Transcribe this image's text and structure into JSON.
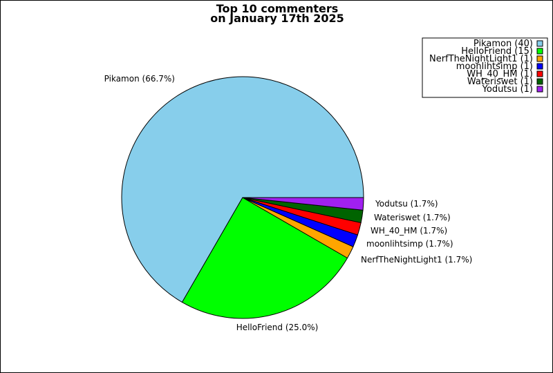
{
  "chart_data": {
    "type": "pie",
    "title_lines": [
      "Top 10 commenters",
      "on January 17th 2025"
    ],
    "start_angle_deg": 0,
    "direction": "counterclockwise",
    "legend_position": "top-right",
    "slices": [
      {
        "name": "Pikamon",
        "value": 40,
        "color": "#87CEEB",
        "label": "Pikamon (66.7%)",
        "legend": "Pikamon (40)"
      },
      {
        "name": "HelloFriend",
        "value": 15,
        "color": "#00FF00",
        "label": "HelloFriend (25.0%)",
        "legend": "HelloFriend (15)"
      },
      {
        "name": "NerfTheNightLight1",
        "value": 1,
        "color": "#FFA500",
        "label": "NerfTheNightLight1 (1.7%)",
        "legend": "NerfTheNightLight1 (1)"
      },
      {
        "name": "moonlihtsimp",
        "value": 1,
        "color": "#0000FF",
        "label": "moonlihtsimp (1.7%)",
        "legend": "moonlihtsimp (1)"
      },
      {
        "name": "WH_40_HM",
        "value": 1,
        "color": "#FF0000",
        "label": "WH_40_HM (1.7%)",
        "legend": "WH_40_HM (1)"
      },
      {
        "name": "Wateriswet",
        "value": 1,
        "color": "#006400",
        "label": "Wateriswet (1.7%)",
        "legend": "Wateriswet (1)"
      },
      {
        "name": "Yodutsu",
        "value": 1,
        "color": "#A020F0",
        "label": "Yodutsu (1.7%)",
        "legend": "Yodutsu (1)"
      }
    ]
  }
}
